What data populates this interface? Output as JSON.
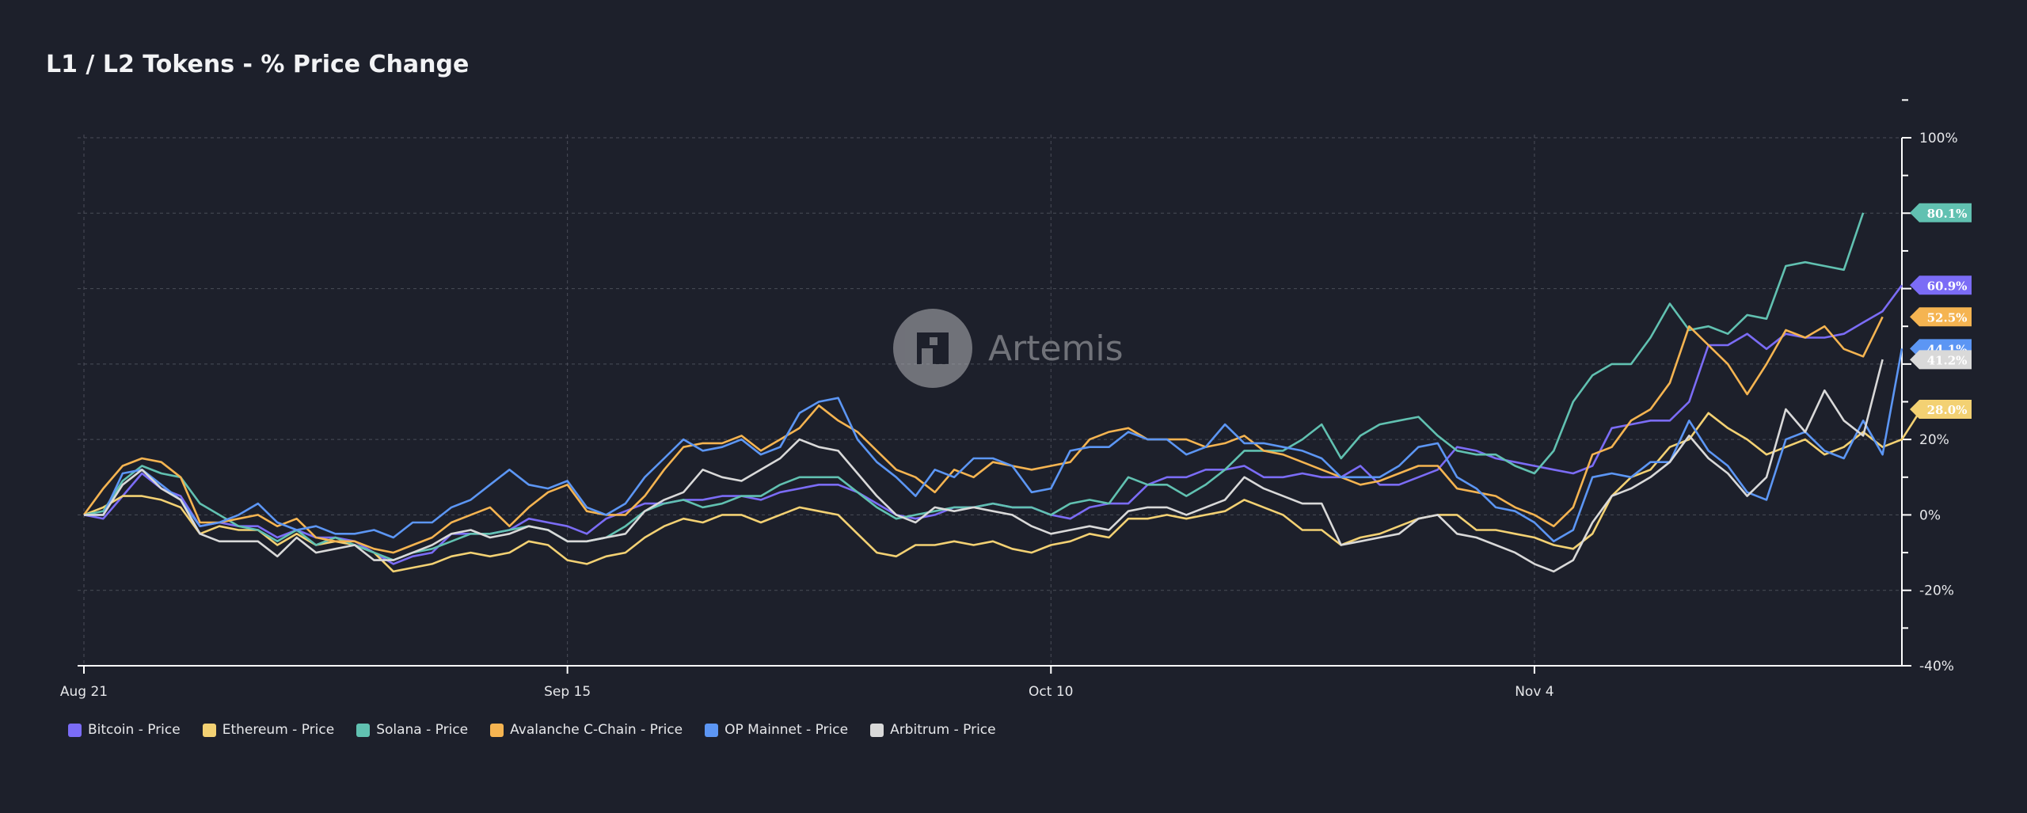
{
  "title": "L1 / L2 Tokens - % Price Change",
  "watermark": "Artemis",
  "chart_data": {
    "type": "line",
    "title": "L1 / L2 Tokens - % Price Change",
    "x_ticks": [
      "Aug 21",
      "Sep 15",
      "Oct 10",
      "Nov 4"
    ],
    "x_tick_index": [
      0,
      25,
      50,
      75
    ],
    "x_start": "Aug 21",
    "x_end": "Nov 21",
    "y_ticks": [
      "100%",
      "20%",
      "0%",
      "-20%",
      "-40%"
    ],
    "y_tick_values": [
      100,
      20,
      0,
      -20,
      -40
    ],
    "ylim": [
      -40,
      100
    ],
    "grid": true,
    "legend_position": "bottom",
    "series": [
      {
        "name": "Bitcoin - Price",
        "color": "#7b6cf6",
        "end_label": "60.9%",
        "values": [
          0,
          -1,
          5,
          11,
          7,
          5,
          -3,
          -2,
          -3,
          -3,
          -6,
          -4,
          -6,
          -6,
          -7,
          -10,
          -13,
          -11,
          -10,
          -5,
          -5,
          -5,
          -4,
          -1,
          -2,
          -3,
          -5,
          -1,
          1,
          3,
          3,
          4,
          4,
          5,
          5,
          4,
          6,
          7,
          8,
          8,
          6,
          3,
          0,
          -1,
          0,
          2,
          2,
          3,
          2,
          2,
          0,
          -1,
          2,
          3,
          3,
          8,
          10,
          10,
          12,
          12,
          13,
          10,
          10,
          11,
          10,
          10,
          13,
          8,
          8,
          10,
          12,
          18,
          17,
          15,
          14,
          13,
          12,
          11,
          13,
          23,
          24,
          25,
          25,
          30,
          45,
          45,
          48,
          44,
          48,
          47,
          47,
          48,
          51,
          54,
          60.9
        ]
      },
      {
        "name": "Ethereum - Price",
        "color": "#f3d173",
        "end_label": "28.0%",
        "values": [
          0,
          2,
          5,
          5,
          4,
          2,
          -5,
          -3,
          -4,
          -4,
          -8,
          -5,
          -8,
          -7,
          -8,
          -10,
          -15,
          -14,
          -13,
          -11,
          -10,
          -11,
          -10,
          -7,
          -8,
          -12,
          -13,
          -11,
          -10,
          -6,
          -3,
          -1,
          -2,
          0,
          0,
          -2,
          0,
          2,
          1,
          0,
          -5,
          -10,
          -11,
          -8,
          -8,
          -7,
          -8,
          -7,
          -9,
          -10,
          -8,
          -7,
          -5,
          -6,
          -1,
          -1,
          0,
          -1,
          0,
          1,
          4,
          2,
          0,
          -4,
          -4,
          -8,
          -6,
          -5,
          -3,
          -1,
          0,
          0,
          -4,
          -4,
          -5,
          -6,
          -8,
          -9,
          -5,
          5,
          10,
          12,
          18,
          20,
          27,
          23,
          20,
          16,
          18,
          20,
          16,
          18,
          22,
          18,
          20,
          28.0
        ]
      },
      {
        "name": "Solana - Price",
        "color": "#61c1b1",
        "end_label": "80.1%",
        "values": [
          0,
          1,
          9,
          13,
          11,
          10,
          3,
          0,
          -3,
          -4,
          -7,
          -4,
          -8,
          -6,
          -8,
          -10,
          -12,
          -10,
          -9,
          -7,
          -5,
          -5,
          -4,
          -3,
          -4,
          -7,
          -7,
          -6,
          -3,
          1,
          3,
          4,
          2,
          3,
          5,
          5,
          8,
          10,
          10,
          10,
          6,
          2,
          -1,
          0,
          1,
          2,
          2,
          3,
          2,
          2,
          0,
          3,
          4,
          3,
          10,
          8,
          8,
          5,
          8,
          12,
          17,
          17,
          17,
          20,
          24,
          15,
          21,
          24,
          25,
          26,
          21,
          17,
          16,
          16,
          13,
          11,
          17,
          30,
          37,
          40,
          40,
          47,
          56,
          49,
          50,
          48,
          53,
          52,
          66,
          67,
          66,
          65,
          80.1
        ]
      },
      {
        "name": "Avalanche C-Chain - Price",
        "color": "#f5b451",
        "end_label": "52.5%",
        "values": [
          0,
          7,
          13,
          15,
          14,
          10,
          -2,
          -2,
          -1,
          0,
          -3,
          -1,
          -6,
          -7,
          -7,
          -9,
          -10,
          -8,
          -6,
          -2,
          0,
          2,
          -3,
          2,
          6,
          8,
          1,
          0,
          0,
          5,
          12,
          18,
          19,
          19,
          21,
          17,
          20,
          23,
          29,
          25,
          22,
          17,
          12,
          10,
          6,
          12,
          10,
          14,
          13,
          12,
          13,
          14,
          20,
          22,
          23,
          20,
          20,
          20,
          18,
          19,
          21,
          17,
          16,
          14,
          12,
          10,
          8,
          9,
          11,
          13,
          13,
          7,
          6,
          5,
          2,
          0,
          -3,
          2,
          16,
          18,
          25,
          28,
          35,
          50,
          45,
          40,
          32,
          40,
          49,
          47,
          50,
          44,
          42,
          52.5
        ]
      },
      {
        "name": "OP Mainnet - Price",
        "color": "#5c96f4",
        "end_label": "44.1%",
        "values": [
          0,
          0,
          11,
          12,
          8,
          4,
          -3,
          -2,
          0,
          3,
          -2,
          -4,
          -3,
          -5,
          -5,
          -4,
          -6,
          -2,
          -2,
          2,
          4,
          8,
          12,
          8,
          7,
          9,
          2,
          0,
          3,
          10,
          15,
          20,
          17,
          18,
          20,
          16,
          18,
          27,
          30,
          31,
          20,
          14,
          10,
          5,
          12,
          10,
          15,
          15,
          13,
          6,
          7,
          17,
          18,
          18,
          22,
          20,
          20,
          16,
          18,
          24,
          19,
          19,
          18,
          17,
          15,
          10,
          10,
          10,
          13,
          18,
          19,
          10,
          7,
          2,
          1,
          -2,
          -7,
          -4,
          10,
          11,
          10,
          14,
          14,
          25,
          17,
          13,
          6,
          4,
          20,
          22,
          17,
          15,
          25,
          16,
          44.1
        ]
      },
      {
        "name": "Arbitrum - Price",
        "color": "#d9d9d9",
        "end_label": "41.2%",
        "values": [
          0,
          0,
          8,
          12,
          7,
          4,
          -5,
          -7,
          -7,
          -7,
          -11,
          -6,
          -10,
          -9,
          -8,
          -12,
          -12,
          -10,
          -8,
          -5,
          -4,
          -6,
          -5,
          -3,
          -4,
          -7,
          -7,
          -6,
          -5,
          1,
          4,
          6,
          12,
          10,
          9,
          12,
          15,
          20,
          18,
          17,
          11,
          5,
          0,
          -2,
          2,
          1,
          2,
          1,
          0,
          -3,
          -5,
          -4,
          -3,
          -4,
          1,
          2,
          2,
          0,
          2,
          4,
          10,
          7,
          5,
          3,
          3,
          -8,
          -7,
          -6,
          -5,
          -1,
          0,
          -5,
          -6,
          -8,
          -10,
          -13,
          -15,
          -12,
          -2,
          5,
          7,
          10,
          14,
          21,
          15,
          11,
          5,
          10,
          28,
          22,
          33,
          25,
          21,
          41.2
        ]
      }
    ]
  },
  "legend": [
    {
      "label": "Bitcoin - Price",
      "color": "#7b6cf6"
    },
    {
      "label": "Ethereum - Price",
      "color": "#f3d173"
    },
    {
      "label": "Solana - Price",
      "color": "#61c1b1"
    },
    {
      "label": "Avalanche C-Chain - Price",
      "color": "#f5b451"
    },
    {
      "label": "OP Mainnet - Price",
      "color": "#5c96f4"
    },
    {
      "label": "Arbitrum - Price",
      "color": "#d9d9d9"
    }
  ]
}
